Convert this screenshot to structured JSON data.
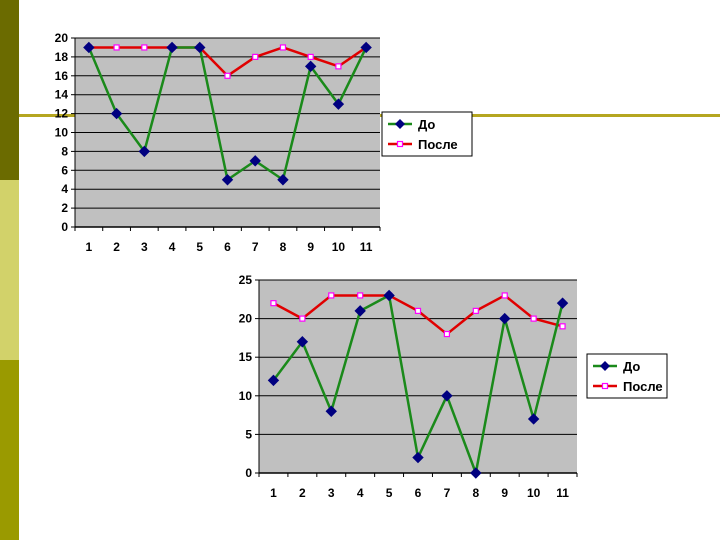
{
  "slide": {
    "colors": {
      "sidebar_top": "#6b6b00",
      "sidebar_mid": "#d2d26a",
      "sidebar_bottom": "#9a9a00",
      "rule": "#b5a620",
      "panel_bg": "#ffffff",
      "plot_bg": "#c0c0c0",
      "grid": "#000000"
    }
  },
  "chart_data": [
    {
      "type": "line",
      "title": "",
      "xlabel": "",
      "ylabel": "",
      "categories": [
        "1",
        "2",
        "3",
        "4",
        "5",
        "6",
        "7",
        "8",
        "9",
        "10",
        "11"
      ],
      "ylim": [
        0,
        20
      ],
      "yticks": [
        "0",
        "2",
        "4",
        "6",
        "8",
        "10",
        "12",
        "14",
        "16",
        "18",
        "20"
      ],
      "grid": true,
      "legend": "right",
      "series": [
        {
          "name": "До",
          "line_color": "#1a8a1a",
          "marker": "diamond",
          "marker_color": "#000080",
          "values": [
            19,
            12,
            8,
            19,
            19,
            5,
            7,
            5,
            17,
            13,
            19
          ]
        },
        {
          "name": "После",
          "line_color": "#e00000",
          "marker": "square",
          "marker_color": "#ff00ff",
          "values": [
            19,
            19,
            19,
            19,
            19,
            16,
            18,
            19,
            18,
            17,
            19
          ]
        }
      ]
    },
    {
      "type": "line",
      "title": "",
      "xlabel": "",
      "ylabel": "",
      "categories": [
        "1",
        "2",
        "3",
        "4",
        "5",
        "6",
        "7",
        "8",
        "9",
        "10",
        "11"
      ],
      "ylim": [
        0,
        25
      ],
      "yticks": [
        "0",
        "5",
        "10",
        "15",
        "20",
        "25"
      ],
      "grid": true,
      "legend": "right",
      "series": [
        {
          "name": "До",
          "line_color": "#1a8a1a",
          "marker": "diamond",
          "marker_color": "#000080",
          "values": [
            12,
            17,
            8,
            21,
            23,
            2,
            10,
            0,
            20,
            7,
            22
          ]
        },
        {
          "name": "После",
          "line_color": "#e00000",
          "marker": "square",
          "marker_color": "#ff00ff",
          "values": [
            22,
            20,
            23,
            23,
            23,
            21,
            18,
            21,
            23,
            20,
            19
          ]
        }
      ]
    }
  ]
}
